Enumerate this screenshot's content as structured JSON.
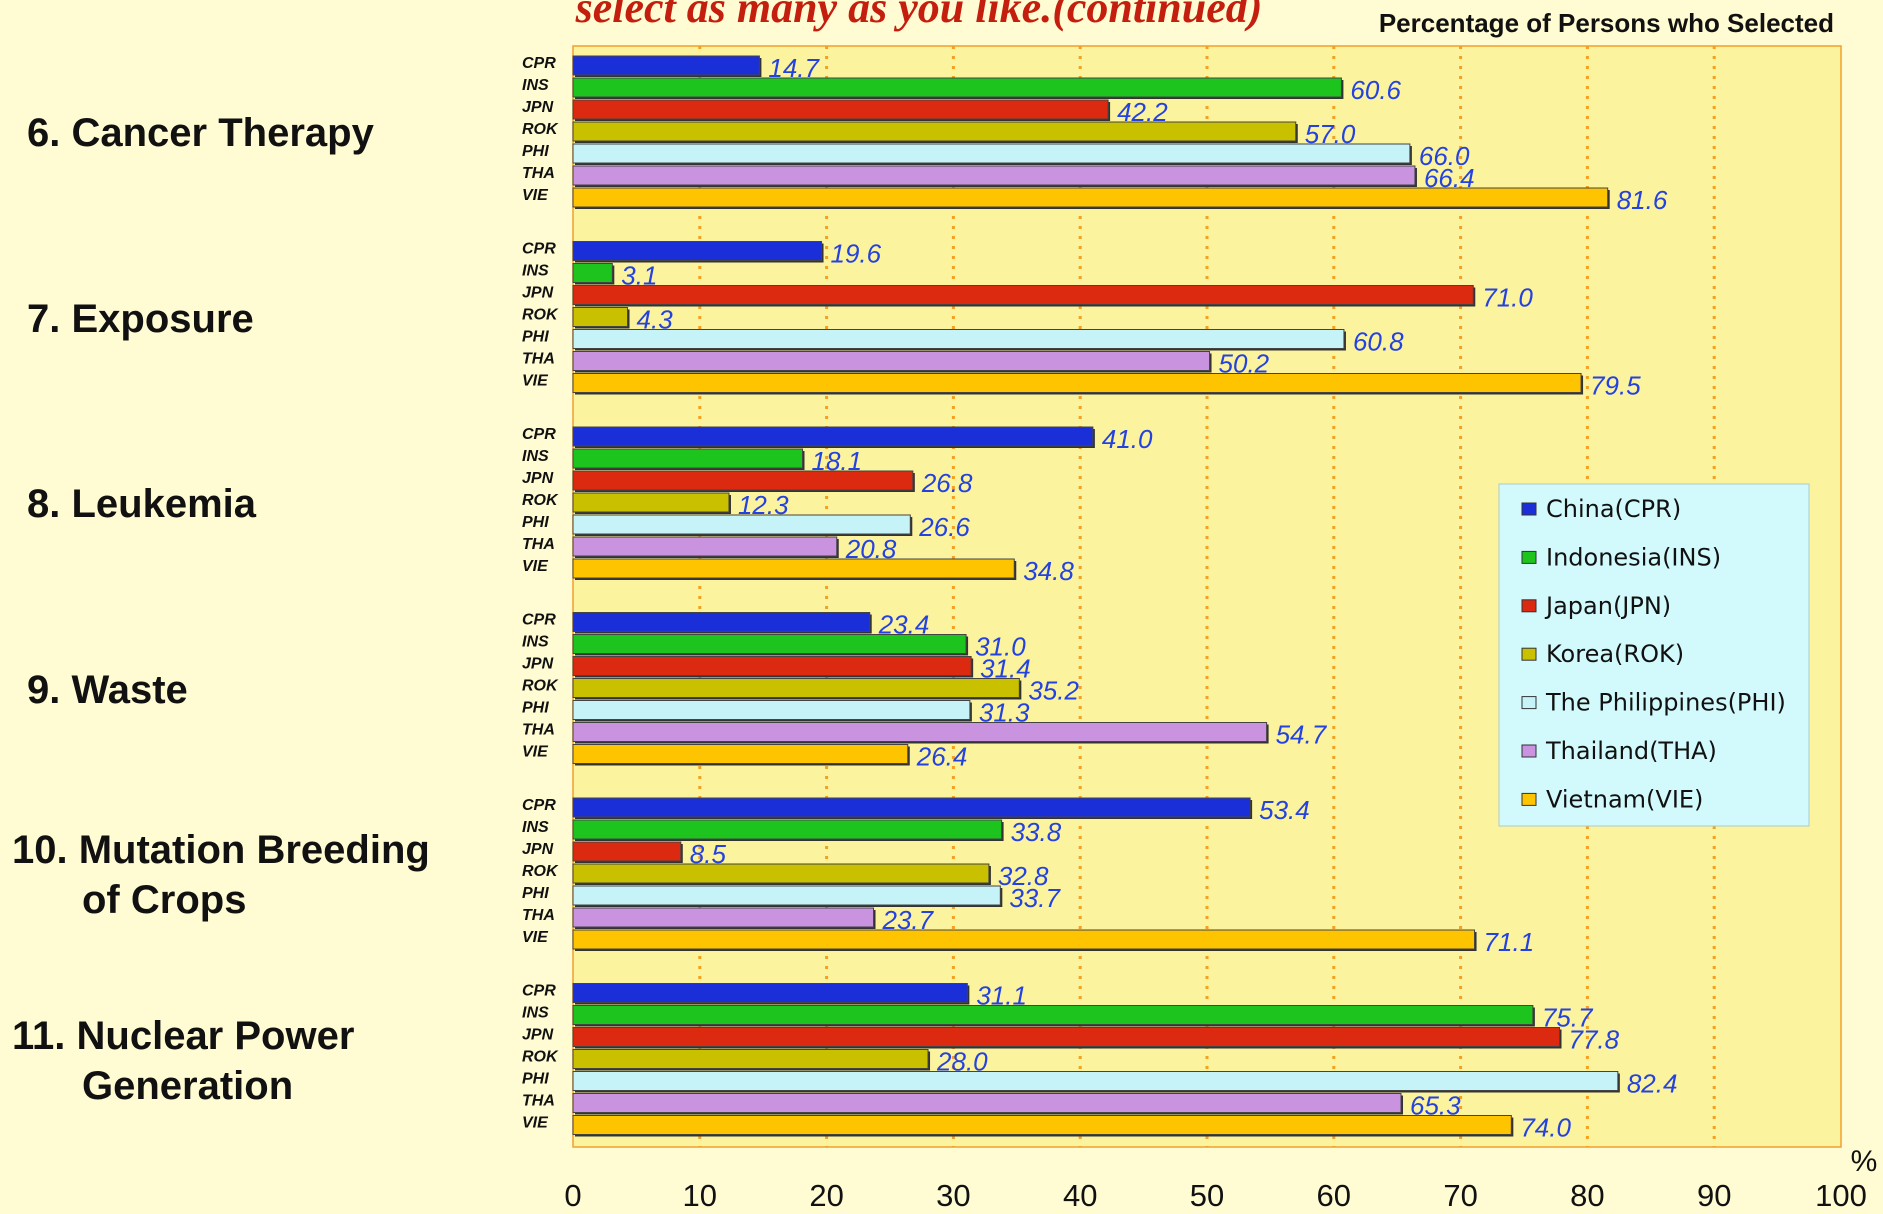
{
  "chart_data": {
    "type": "bar",
    "orientation": "horizontal",
    "title": "select as many as you like.(continued)",
    "x_label": "Percentage of Persons who Selected",
    "unit_label": "%",
    "categories": [
      "6. Cancer Therapy",
      "7. Exposure",
      "8. Leukemia",
      "9. Waste",
      "10. Mutation Breeding\nof Crops",
      "11. Nuclear Power\nGeneration"
    ],
    "series": [
      {
        "name": "China(CPR)",
        "code": "CPR",
        "color": "#1b2fd8",
        "values": [
          14.7,
          19.6,
          41.0,
          23.4,
          53.4,
          31.1
        ],
        "value_labels": [
          "14.7",
          "19.6",
          "41.0",
          "23.4",
          "53.4",
          "31.1"
        ]
      },
      {
        "name": "Indonesia(INS)",
        "code": "INS",
        "color": "#1ec41e",
        "values": [
          60.6,
          3.1,
          18.1,
          31.0,
          33.8,
          75.7
        ],
        "value_labels": [
          "60.6",
          "3.1",
          "18.1",
          "31.0",
          "33.8",
          "75.7"
        ]
      },
      {
        "name": "Japan(JPN)",
        "code": "JPN",
        "color": "#dc2a10",
        "values": [
          42.2,
          71.0,
          26.8,
          31.4,
          8.5,
          77.8
        ],
        "value_labels": [
          "42.2",
          "71.0",
          "26.8",
          "31.4",
          "8.5",
          "77.8"
        ]
      },
      {
        "name": "Korea(ROK)",
        "code": "ROK",
        "color": "#c9c000",
        "values": [
          57.0,
          4.3,
          12.3,
          35.2,
          32.8,
          28.0
        ],
        "value_labels": [
          "57.0",
          "4.3",
          "12.3",
          "35.2",
          "32.8",
          "28.0"
        ]
      },
      {
        "name": "The Philippines(PHI)",
        "code": "PHI",
        "color": "#c6f3f8",
        "values": [
          66.0,
          60.8,
          26.6,
          31.3,
          33.7,
          82.4
        ],
        "value_labels": [
          "66.0",
          "60.8",
          "26.6",
          "31.3",
          "33.7",
          "82.4"
        ]
      },
      {
        "name": "Thailand(THA)",
        "code": "THA",
        "color": "#c993df",
        "values": [
          66.4,
          50.2,
          20.8,
          54.7,
          23.7,
          65.3
        ],
        "value_labels": [
          "66.4",
          "50.2",
          "20.8",
          "54.7",
          "23.7",
          "65.3"
        ]
      },
      {
        "name": "Vietnam(VIE)",
        "code": "VIE",
        "color": "#ffc400",
        "values": [
          81.6,
          79.5,
          34.8,
          26.4,
          71.1,
          74.0
        ],
        "value_labels": [
          "81.6",
          "79.5",
          "34.8",
          "26.4",
          "71.1",
          "74.0"
        ]
      }
    ],
    "xlim": [
      0,
      100
    ],
    "xticks": [
      0,
      10,
      20,
      30,
      40,
      50,
      60,
      70,
      80,
      90,
      100
    ],
    "grid": true,
    "legend": "right"
  }
}
